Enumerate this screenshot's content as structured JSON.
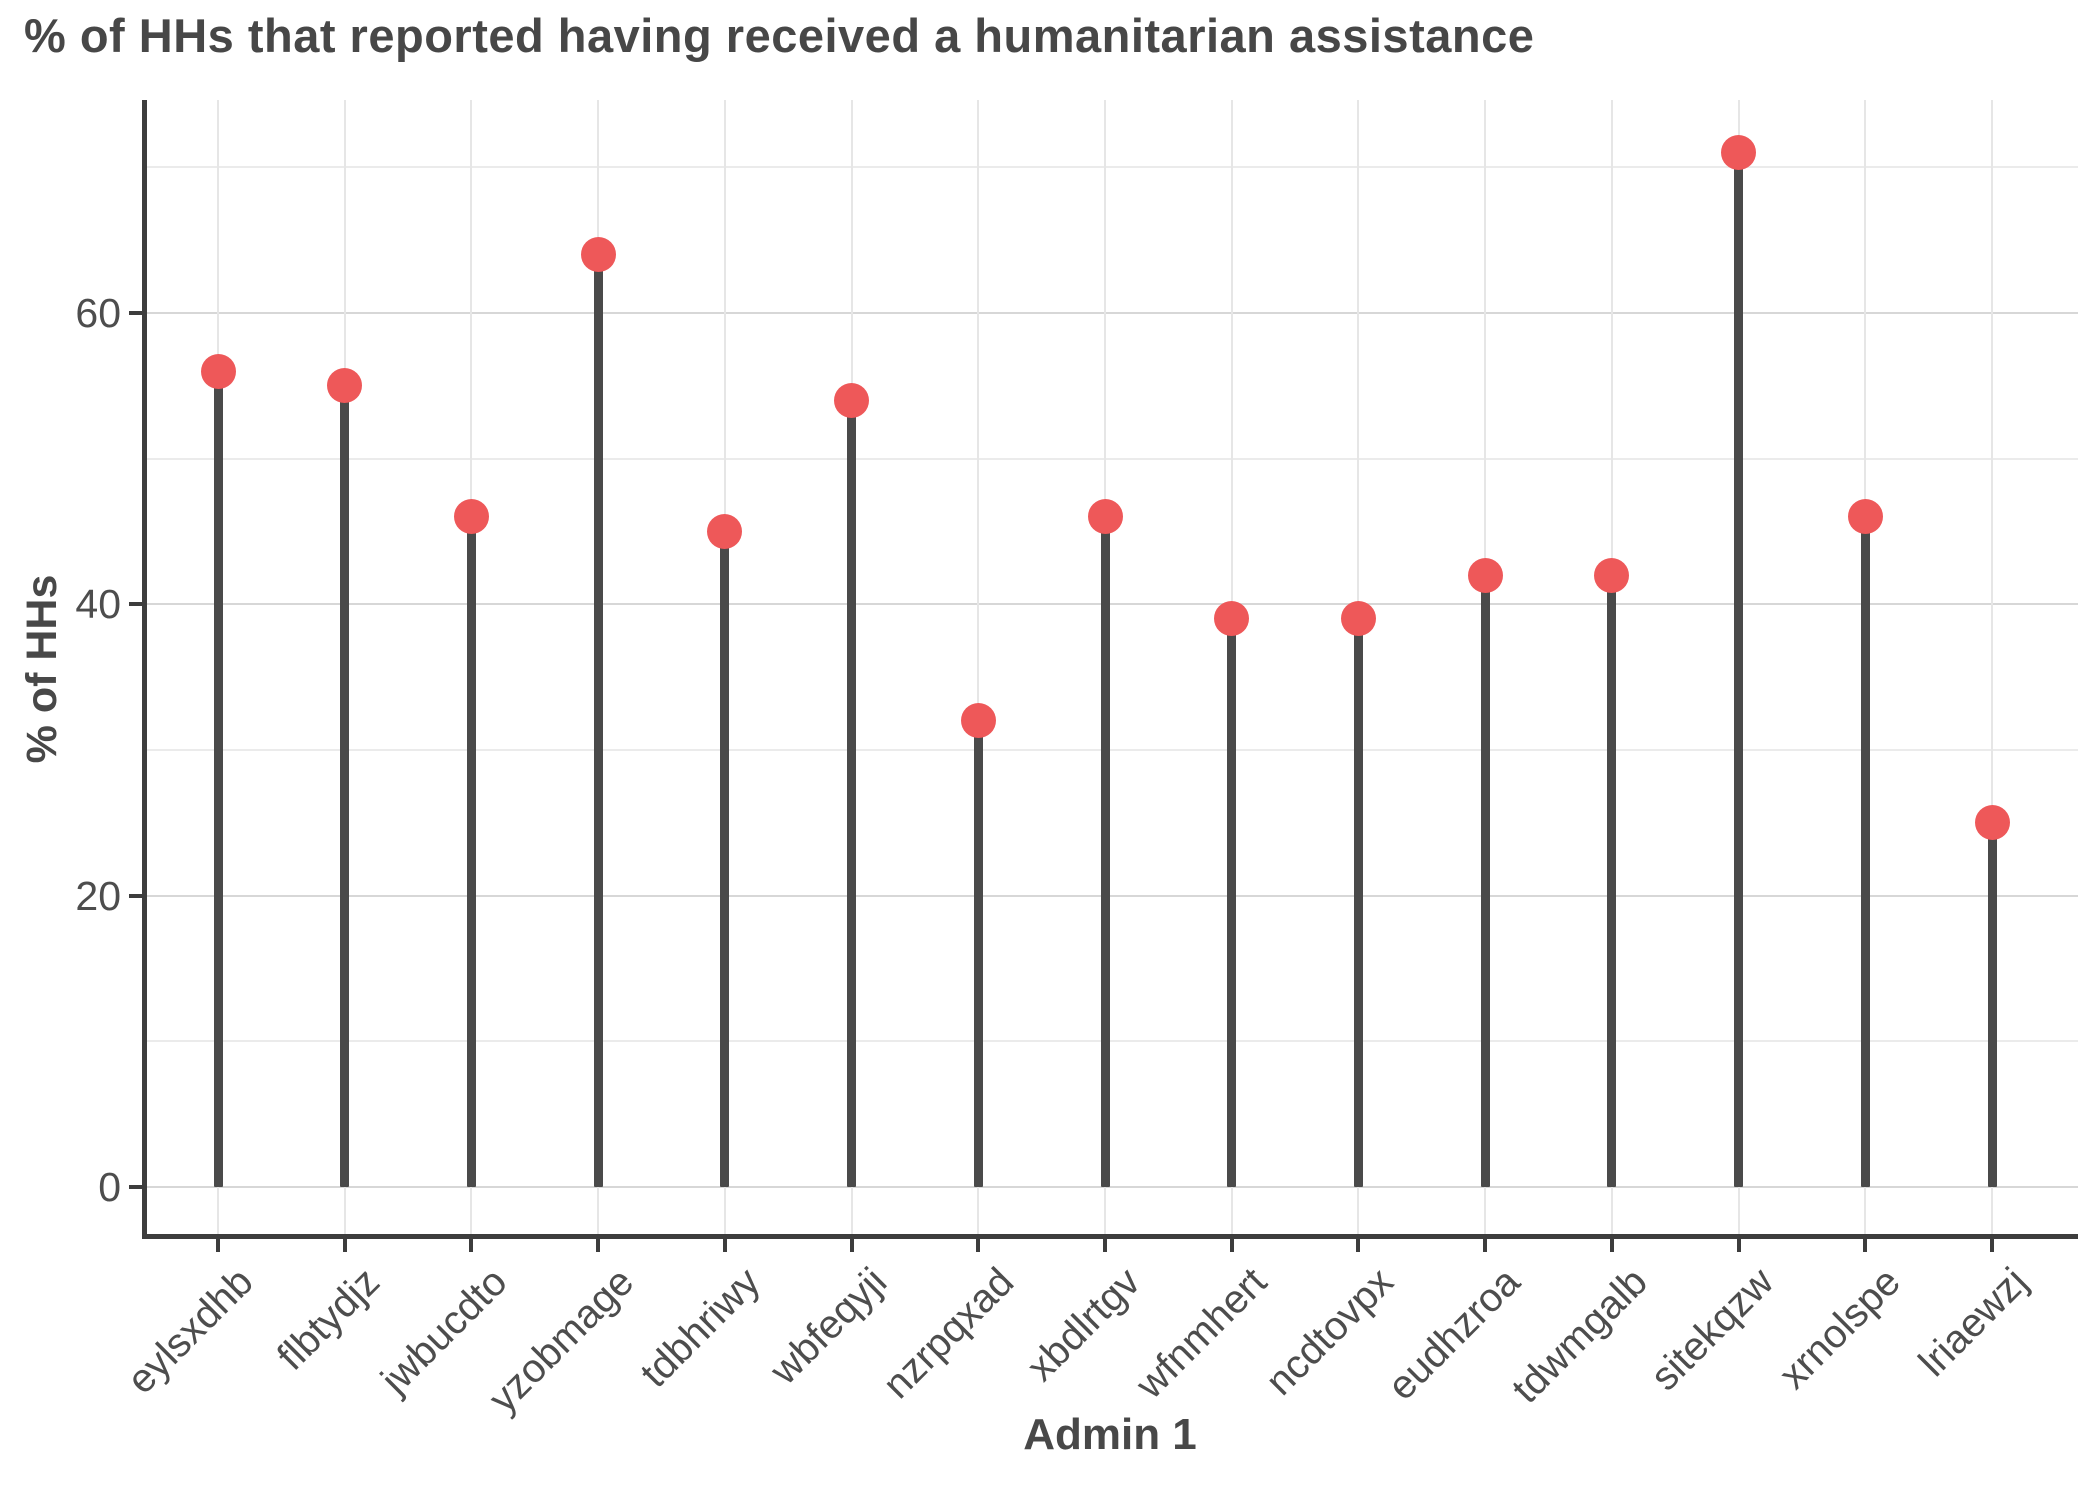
{
  "chart_data": {
    "type": "bar",
    "variant": "lollipop",
    "title": "% of HHs that reported having received a humanitarian assistance",
    "xlabel": "Admin 1",
    "ylabel": "% of HHs",
    "categories": [
      "eylsxdhb",
      "flbtydjz",
      "jwbucdto",
      "yzobmage",
      "tdbhriwy",
      "wbfeqyji",
      "nzrpqxad",
      "xbdlrtgv",
      "wfnmhert",
      "ncdtovpx",
      "eudhzroa",
      "tdwmgalb",
      "sitekqzw",
      "xrnolspe",
      "lriaewzj"
    ],
    "values": [
      56,
      55,
      46,
      64,
      45,
      54,
      32,
      46,
      39,
      39,
      42,
      42,
      71,
      46,
      25
    ],
    "ylim": [
      0,
      75
    ],
    "y_major_ticks": [
      0,
      20,
      40,
      60
    ],
    "y_major_tick_labels": [
      "0",
      "20",
      "40",
      "60"
    ],
    "y_minor_gridlines": [
      10,
      30,
      50,
      70
    ],
    "grid": "on",
    "legend": "none",
    "colors": {
      "point": "#ee5859",
      "stem": "#4a4a4a",
      "axis": "#3d3d3d",
      "grid_major": "#d7d7d7",
      "grid_minor": "#ebebeb",
      "grid_vertical": "#e6e6e6",
      "tick_text": "#4d4d4d",
      "title_text": "#474747"
    }
  }
}
